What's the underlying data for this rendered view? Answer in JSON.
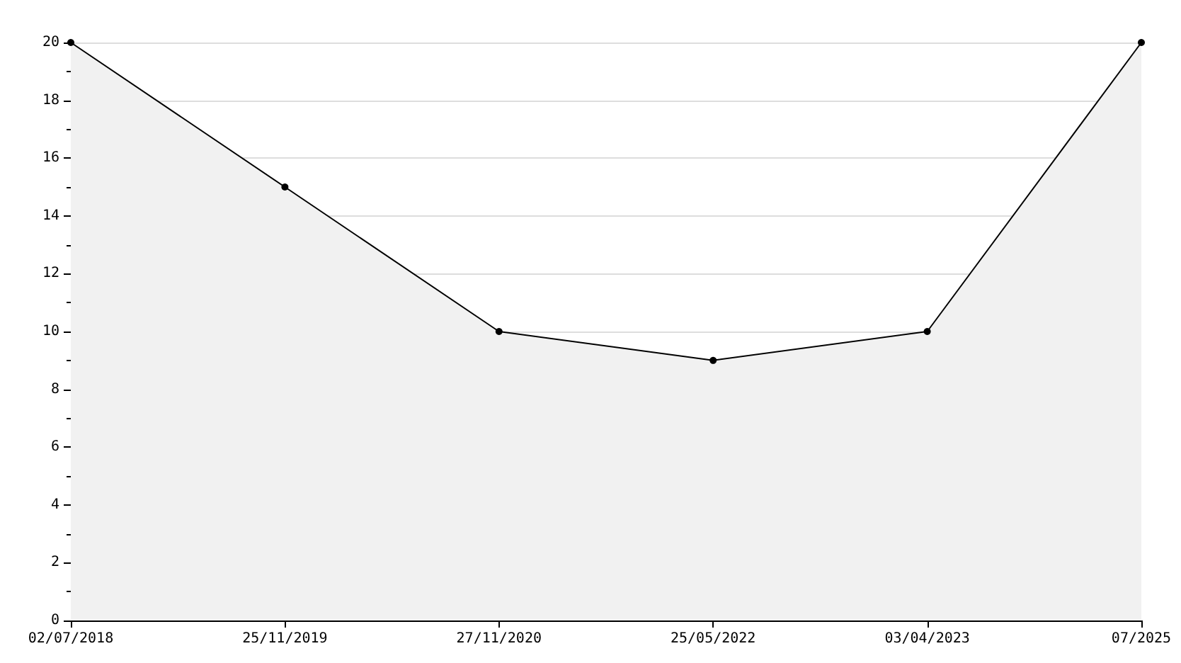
{
  "chart_data": {
    "type": "area",
    "categories": [
      "02/07/2018",
      "25/11/2019",
      "27/11/2020",
      "25/05/2022",
      "03/04/2023",
      "07/2025"
    ],
    "series": [
      {
        "color": "#000000",
        "values": [
          20,
          15,
          10,
          9,
          10,
          20
        ]
      }
    ],
    "ylim": [
      0,
      20
    ],
    "yticks": [
      0,
      2,
      4,
      6,
      8,
      10,
      12,
      14,
      16,
      18,
      20
    ],
    "grid": "y",
    "marker": "circle",
    "line_style": "solid"
  }
}
